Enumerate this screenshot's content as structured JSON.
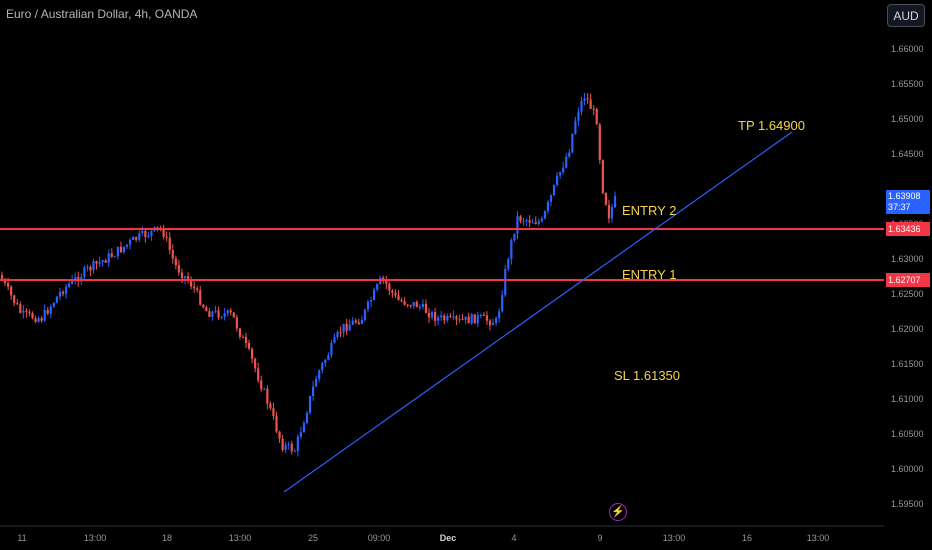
{
  "header": {
    "title": "Euro / Australian Dollar, 4h, OANDA",
    "currency_button": "AUD"
  },
  "price_axis": {
    "labels": [
      "1.66000",
      "1.65500",
      "1.65000",
      "1.64500",
      "1.63500",
      "1.63000",
      "1.62500",
      "1.62000",
      "1.61500",
      "1.61000",
      "1.60500",
      "1.60000",
      "1.59500"
    ]
  },
  "time_axis": {
    "labels": [
      "11",
      "13:00",
      "18",
      "13:00",
      "25",
      "09:00",
      "Dec",
      "4",
      "9",
      "13:00",
      "16",
      "13:00"
    ]
  },
  "price_tags": {
    "current": {
      "price": "1.63908",
      "countdown": "37:37",
      "color": "#2962ff"
    },
    "line_upper": {
      "price": "1.63436",
      "color": "#f23645"
    },
    "line_lower": {
      "price": "1.62707",
      "color": "#f23645"
    }
  },
  "annotations": {
    "tp": "TP 1.64900",
    "entry2": "ENTRY 2",
    "entry1": "ENTRY 1",
    "sl": "SL 1.61350"
  },
  "colors": {
    "bull": "#2962ff",
    "bear": "#ef5350",
    "hline": "#f23645",
    "trend": "#2962ff",
    "text_annotation": "#f5d547"
  },
  "chart_data": {
    "type": "candlestick",
    "symbol": "EURAUD",
    "timeframe": "4h",
    "ylim": [
      1.593,
      1.666
    ],
    "candle_count": 200,
    "horizontal_levels": [
      1.63436,
      1.62707
    ],
    "trendline": {
      "from_price": 1.5967,
      "to_price": 1.6478
    },
    "key_prices": {
      "low": 1.5967,
      "high": 1.6562,
      "last": 1.63908
    }
  }
}
